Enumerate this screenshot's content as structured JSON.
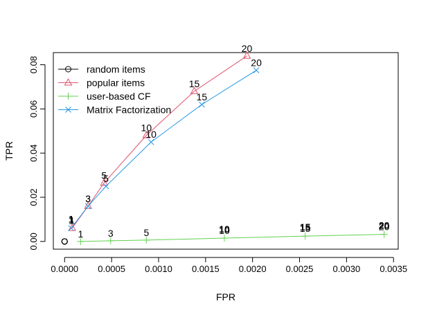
{
  "chart_data": {
    "type": "line",
    "xlabel": "FPR",
    "ylabel": "TPR",
    "xlim": [
      -0.00012,
      0.00355
    ],
    "ylim": [
      -0.0035,
      0.0855
    ],
    "xticks": [
      0.0,
      0.0005,
      0.001,
      0.0015,
      0.002,
      0.0025,
      0.003,
      0.0035
    ],
    "xtick_labels": [
      "0.0000",
      "0.0005",
      "0.0010",
      "0.0015",
      "0.0020",
      "0.0025",
      "0.0030",
      "0.0035"
    ],
    "yticks": [
      0.0,
      0.02,
      0.04,
      0.06,
      0.08
    ],
    "ytick_labels": [
      "0.00",
      "0.02",
      "0.04",
      "0.06",
      "0.08"
    ],
    "grid": false,
    "legend_position": "top-left",
    "series": [
      {
        "name": "random items",
        "color": "#000000",
        "marker": "circle",
        "x": [
          0.0,
          0.0,
          0.0,
          0.0,
          0.0,
          0.0
        ],
        "y": [
          0.0,
          0.0,
          0.0,
          0.0,
          0.0,
          0.0
        ],
        "point_labels": [],
        "label_points": []
      },
      {
        "name": "popular items",
        "color": "#DF536B",
        "marker": "triangle",
        "x": [
          8e-05,
          0.00025,
          0.00042,
          0.00087,
          0.00138,
          0.00194
        ],
        "y": [
          0.006,
          0.016,
          0.0265,
          0.048,
          0.068,
          0.084
        ],
        "point_labels": [
          "1",
          "3",
          "5",
          "10",
          "15",
          "20"
        ],
        "label_points": [
          0,
          1,
          2,
          3,
          4,
          5
        ],
        "label_weight": "normal"
      },
      {
        "name": "user-based CF",
        "color": "#61D04F",
        "marker": "plus",
        "x": [
          0.00017,
          0.00049,
          0.00087,
          0.0017,
          0.00256,
          0.0034
        ],
        "y": [
          0.0,
          0.0003,
          0.0006,
          0.0015,
          0.0024,
          0.0032
        ],
        "point_labels": [
          "1",
          "3",
          "5",
          "10",
          "15",
          "20"
        ],
        "label_points": [
          0,
          1,
          2,
          3,
          4,
          5
        ],
        "label_weight": "normal"
      },
      {
        "name": "Matrix Factorization",
        "color": "#2297E6",
        "marker": "cross",
        "x": [
          7e-05,
          0.00025,
          0.00044,
          0.00092,
          0.00146,
          0.00204
        ],
        "y": [
          0.006,
          0.016,
          0.025,
          0.045,
          0.062,
          0.0775
        ],
        "point_labels": [
          "1",
          "3",
          "5",
          "10",
          "15",
          "20"
        ],
        "label_points": [
          0,
          1,
          2,
          3,
          4,
          5
        ],
        "label_weight": "normal"
      }
    ],
    "extra_labels": [
      {
        "text": "1",
        "x": 7e-05,
        "y": 0.006,
        "weight": "bold"
      },
      {
        "text": "10",
        "x": 0.0017,
        "y": 0.0015,
        "weight": "bold"
      },
      {
        "text": "15",
        "x": 0.00256,
        "y": 0.0024,
        "weight": "bold"
      },
      {
        "text": "20",
        "x": 0.0034,
        "y": 0.0032,
        "weight": "bold"
      }
    ]
  }
}
